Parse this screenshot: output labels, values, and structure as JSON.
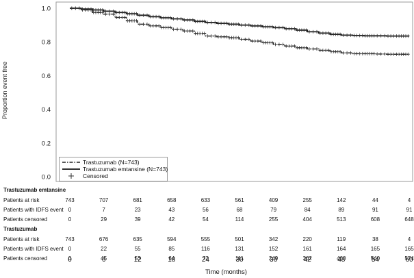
{
  "chart_data": {
    "type": "line",
    "ylabel": "Proportion event free",
    "xlabel": "Time (months)",
    "ylim": [
      0,
      1.0
    ],
    "xlim": [
      0,
      60
    ],
    "yticks": [
      "1.0",
      "0.8",
      "0.6",
      "0.4",
      "0.2",
      "0.0"
    ],
    "xticks": [
      "0",
      "6",
      "12",
      "18",
      "24",
      "30",
      "36",
      "42",
      "48",
      "54",
      "60"
    ],
    "legend_position": "bottom-left",
    "series": [
      {
        "name": "Trastuzumab (N=743)",
        "style": "dash-dot",
        "color": "#222222",
        "x": [
          0,
          2,
          4,
          6,
          8,
          10,
          12,
          14,
          16,
          18,
          20,
          22,
          24,
          26,
          28,
          30,
          32,
          34,
          36,
          38,
          40,
          42,
          44,
          46,
          48,
          50,
          52,
          54,
          56,
          58,
          60
        ],
        "y": [
          1.0,
          0.99,
          0.975,
          0.965,
          0.945,
          0.925,
          0.905,
          0.895,
          0.885,
          0.875,
          0.865,
          0.85,
          0.835,
          0.83,
          0.825,
          0.815,
          0.805,
          0.795,
          0.785,
          0.775,
          0.765,
          0.758,
          0.75,
          0.742,
          0.735,
          0.73,
          0.73,
          0.728,
          0.727,
          0.727,
          0.727
        ]
      },
      {
        "name": "Trastuzumab emtansine (N=743)",
        "style": "solid",
        "color": "#111111",
        "x": [
          0,
          2,
          4,
          6,
          8,
          10,
          12,
          14,
          16,
          18,
          20,
          22,
          24,
          26,
          28,
          30,
          32,
          34,
          36,
          38,
          40,
          42,
          44,
          46,
          48,
          50,
          52,
          54,
          56,
          58,
          60
        ],
        "y": [
          1.0,
          0.995,
          0.99,
          0.982,
          0.975,
          0.967,
          0.958,
          0.95,
          0.943,
          0.937,
          0.93,
          0.922,
          0.915,
          0.91,
          0.905,
          0.9,
          0.895,
          0.89,
          0.885,
          0.878,
          0.87,
          0.86,
          0.852,
          0.845,
          0.84,
          0.838,
          0.836,
          0.836,
          0.835,
          0.835,
          0.835
        ]
      }
    ],
    "legend": [
      {
        "label": "Trastuzumab (N=743)",
        "symbol": "dash-dot"
      },
      {
        "label": "Trastuzumab emtansine (N=743)",
        "symbol": "solid"
      },
      {
        "label": "Censored",
        "symbol": "plus"
      }
    ]
  },
  "risk_table": {
    "groups": [
      {
        "name": "Trastuzumab emtansine",
        "rows": [
          {
            "label": "Patients at risk",
            "values": [
              "743",
              "707",
              "681",
              "658",
              "633",
              "561",
              "409",
              "255",
              "142",
              "44",
              "4"
            ]
          },
          {
            "label": "Patients with IDFS event",
            "values": [
              "0",
              "7",
              "23",
              "43",
              "56",
              "68",
              "79",
              "84",
              "89",
              "91",
              "91"
            ]
          },
          {
            "label": "Patients censored",
            "values": [
              "0",
              "29",
              "39",
              "42",
              "54",
              "114",
              "255",
              "404",
              "513",
              "608",
              "648"
            ]
          }
        ]
      },
      {
        "name": "Trastuzumab",
        "rows": [
          {
            "label": "Patients at risk",
            "values": [
              "743",
              "676",
              "635",
              "594",
              "555",
              "501",
              "342",
              "220",
              "119",
              "38",
              "4"
            ]
          },
          {
            "label": "Patients with IDFS event",
            "values": [
              "0",
              "22",
              "55",
              "85",
              "116",
              "131",
              "152",
              "161",
              "164",
              "165",
              "165"
            ]
          },
          {
            "label": "Patients censored",
            "values": [
              "0",
              "45",
              "53",
              "64",
              "72",
              "111",
              "249",
              "362",
              "460",
              "540",
              "574"
            ]
          }
        ]
      }
    ]
  }
}
